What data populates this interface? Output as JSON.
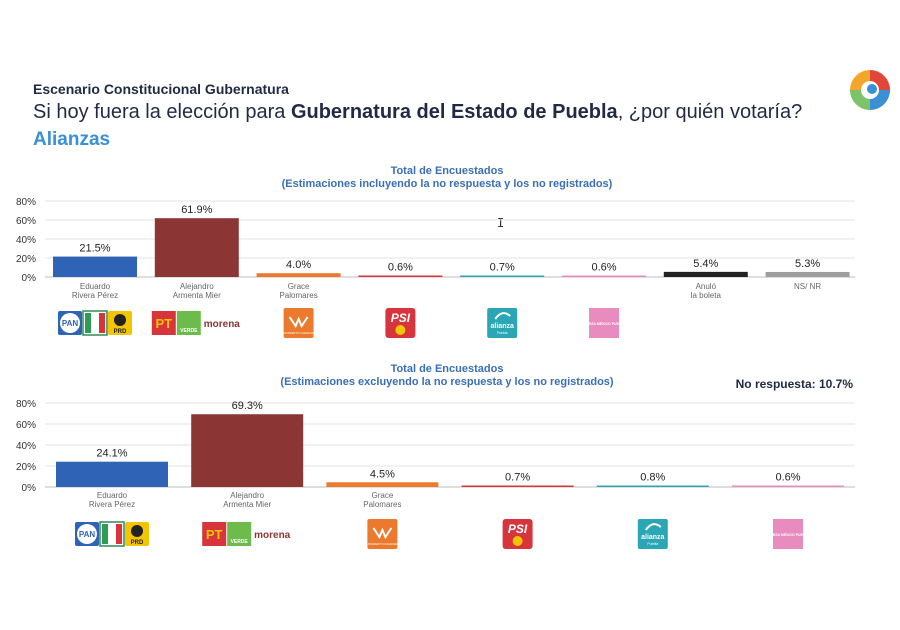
{
  "header": {
    "subtitle": "Escenario Constitucional Gubernatura",
    "question_pre": "Si hoy fuera la elección para ",
    "question_bold": "Gubernatura del Estado de Puebla",
    "question_post": ", ¿por quién votaría?",
    "section": "Alianzas"
  },
  "colors": {
    "pan_blue": "#2e63b5",
    "morena": "#8b3535",
    "mc_orange": "#ec7a2e",
    "psi": "#d8343c",
    "alianza": "#2aa6b5",
    "fuerza": "#e88cc0",
    "anulo": "#222222",
    "nsnr": "#9e9e9e",
    "gridline": "#e3e3e3"
  },
  "chart_data": [
    {
      "type": "bar",
      "title": "Total de Encuestados",
      "subtitle": "(Estimaciones incluyendo la no respuesta y los no registrados)",
      "yticks": [
        "80%",
        "60%",
        "40%",
        "20%",
        "0%"
      ],
      "ylim": [
        0,
        80
      ],
      "categories": [
        [
          "Eduardo",
          "Rivera Pérez"
        ],
        [
          "Alejandro",
          "Armenta Mier"
        ],
        [
          "Grace",
          "Palomares"
        ],
        [
          "",
          ""
        ],
        [
          "",
          ""
        ],
        [
          "",
          ""
        ],
        [
          "Anuló",
          "la boleta"
        ],
        [
          "NS/ NR",
          ""
        ]
      ],
      "values": [
        21.5,
        61.9,
        4.0,
        0.6,
        0.7,
        0.6,
        5.4,
        5.3
      ],
      "labels": [
        "21.5%",
        "61.9%",
        "4.0%",
        "0.6%",
        "0.7%",
        "0.6%",
        "5.4%",
        "5.3%"
      ],
      "colors": [
        "#2e63b5",
        "#8b3535",
        "#ec7a2e",
        "#d8343c",
        "#2aa6b5",
        "#e88cc0",
        "#222222",
        "#9e9e9e"
      ],
      "logos": [
        "pan-prd",
        "pt-verde-morena",
        "mc",
        "psi",
        "alianza",
        "fuerza",
        "",
        ""
      ]
    },
    {
      "type": "bar",
      "title": "Total de Encuestados",
      "subtitle": "(Estimaciones excluyendo la no respuesta y los no registrados)",
      "note": "No respuesta: 10.7%",
      "yticks": [
        "80%",
        "60%",
        "40%",
        "20%",
        "0%"
      ],
      "ylim": [
        0,
        80
      ],
      "categories": [
        [
          "Eduardo",
          "Rivera Pérez"
        ],
        [
          "Alejandro",
          "Armenta Mier"
        ],
        [
          "Grace",
          "Palomares"
        ],
        [
          "",
          ""
        ],
        [
          "",
          ""
        ],
        [
          "",
          ""
        ]
      ],
      "values": [
        24.1,
        69.3,
        4.5,
        0.7,
        0.8,
        0.6
      ],
      "labels": [
        "24.1%",
        "69.3%",
        "4.5%",
        "0.7%",
        "0.8%",
        "0.6%"
      ],
      "colors": [
        "#2e63b5",
        "#8b3535",
        "#ec7a2e",
        "#d8343c",
        "#2aa6b5",
        "#e88cc0"
      ],
      "logos": [
        "pan-prd",
        "pt-verde-morena",
        "mc",
        "psi",
        "alianza",
        "fuerza"
      ]
    }
  ],
  "logo_text": {
    "pan": "PAN",
    "prd": "PRD",
    "pt": "PT",
    "verde": "VERDE",
    "morena": "morena",
    "mc": "MOVIMIENTO CIUDADANO",
    "psi": "PSI",
    "alianza": "alianza",
    "alianza_sub": "Puebla",
    "fuerza": "FUERZA MÉXICO PUEBLA"
  }
}
